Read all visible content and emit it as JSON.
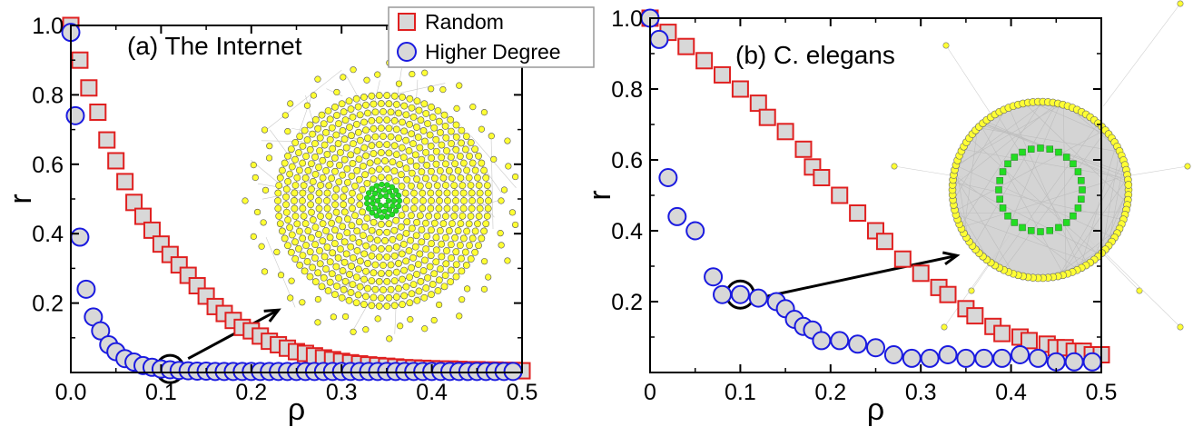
{
  "chart_data": [
    {
      "type": "scatter",
      "title": "(a) The Internet",
      "xlabel": "ρ",
      "ylabel": "r",
      "xlim": [
        0,
        0.5
      ],
      "ylim": [
        0,
        1.0
      ],
      "x_ticks": [
        "0.0",
        "0.1",
        "0.2",
        "0.3",
        "0.4",
        "0.5"
      ],
      "y_ticks": [
        "0.2",
        "0.4",
        "0.6",
        "0.8",
        "1.0"
      ],
      "legend": "top-right",
      "grid": false,
      "series": [
        {
          "name": "Random",
          "marker": "square",
          "color": "#e02020",
          "fill": "#d8d8d8",
          "x": [
            0.0,
            0.01,
            0.02,
            0.03,
            0.04,
            0.05,
            0.06,
            0.07,
            0.08,
            0.09,
            0.1,
            0.11,
            0.12,
            0.13,
            0.14,
            0.15,
            0.16,
            0.17,
            0.18,
            0.19,
            0.2,
            0.21,
            0.22,
            0.23,
            0.24,
            0.25,
            0.26,
            0.27,
            0.28,
            0.29,
            0.3,
            0.31,
            0.32,
            0.33,
            0.34,
            0.35,
            0.36,
            0.37,
            0.38,
            0.39,
            0.4,
            0.41,
            0.42,
            0.43,
            0.44,
            0.45,
            0.46,
            0.47,
            0.48,
            0.49,
            0.5
          ],
          "y": [
            1.0,
            0.9,
            0.82,
            0.75,
            0.67,
            0.61,
            0.55,
            0.49,
            0.45,
            0.41,
            0.37,
            0.34,
            0.31,
            0.28,
            0.25,
            0.22,
            0.19,
            0.17,
            0.15,
            0.13,
            0.12,
            0.105,
            0.09,
            0.08,
            0.07,
            0.06,
            0.055,
            0.048,
            0.042,
            0.037,
            0.032,
            0.028,
            0.025,
            0.022,
            0.02,
            0.018,
            0.016,
            0.014,
            0.013,
            0.012,
            0.011,
            0.01,
            0.01,
            0.009,
            0.008,
            0.008,
            0.007,
            0.007,
            0.006,
            0.006,
            0.005
          ]
        },
        {
          "name": "Higher Degree",
          "marker": "circle",
          "color": "#1a1ae0",
          "fill": "#d8d8d8",
          "x": [
            0.0,
            0.005,
            0.01,
            0.017,
            0.025,
            0.033,
            0.042,
            0.05,
            0.06,
            0.07,
            0.08,
            0.09,
            0.1,
            0.11,
            0.12,
            0.13,
            0.14,
            0.15,
            0.16,
            0.17,
            0.18,
            0.19,
            0.2,
            0.21,
            0.22,
            0.23,
            0.24,
            0.25,
            0.26,
            0.27,
            0.28,
            0.29,
            0.3,
            0.31,
            0.32,
            0.33,
            0.34,
            0.35,
            0.36,
            0.37,
            0.38,
            0.39,
            0.4,
            0.41,
            0.42,
            0.43,
            0.44,
            0.45,
            0.46,
            0.47,
            0.48,
            0.49
          ],
          "y": [
            0.98,
            0.74,
            0.39,
            0.24,
            0.16,
            0.12,
            0.08,
            0.06,
            0.04,
            0.03,
            0.02,
            0.015,
            0.01,
            0.008,
            0.006,
            0.005,
            0.004,
            0.004,
            0.003,
            0.003,
            0.003,
            0.003,
            0.003,
            0.003,
            0.003,
            0.003,
            0.003,
            0.003,
            0.003,
            0.003,
            0.003,
            0.003,
            0.003,
            0.003,
            0.003,
            0.003,
            0.003,
            0.003,
            0.003,
            0.003,
            0.003,
            0.003,
            0.003,
            0.003,
            0.003,
            0.003,
            0.003,
            0.003,
            0.003,
            0.003,
            0.003,
            0.003
          ]
        }
      ],
      "annotations": [
        {
          "type": "highlight-circle",
          "x": 0.11,
          "y": 0.01
        },
        {
          "type": "arrow",
          "from": [
            0.13,
            0.04
          ],
          "to": [
            0.23,
            0.18
          ]
        }
      ],
      "inset": {
        "type": "network",
        "layout": "concentric-rings",
        "node_colors": [
          "#ffff33",
          "#22dd22"
        ]
      }
    },
    {
      "type": "scatter",
      "title": "(b) C. elegans",
      "xlabel": "ρ",
      "ylabel": "r",
      "xlim": [
        0,
        0.5
      ],
      "ylim": [
        0,
        1.0
      ],
      "x_ticks": [
        "0",
        "0.1",
        "0.2",
        "0.3",
        "0.4",
        "0.5"
      ],
      "y_ticks": [
        "0.2",
        "0.4",
        "0.6",
        "0.8",
        "1.0"
      ],
      "grid": false,
      "series": [
        {
          "name": "Random",
          "marker": "square",
          "color": "#e02020",
          "fill": "#d8d8d8",
          "x": [
            0.0,
            0.02,
            0.04,
            0.06,
            0.08,
            0.1,
            0.12,
            0.13,
            0.15,
            0.17,
            0.18,
            0.19,
            0.21,
            0.23,
            0.25,
            0.26,
            0.28,
            0.3,
            0.32,
            0.33,
            0.35,
            0.36,
            0.38,
            0.39,
            0.41,
            0.42,
            0.44,
            0.45,
            0.46,
            0.47,
            0.48,
            0.49,
            0.5
          ],
          "y": [
            1.0,
            0.96,
            0.92,
            0.88,
            0.84,
            0.8,
            0.76,
            0.72,
            0.68,
            0.63,
            0.58,
            0.55,
            0.5,
            0.45,
            0.4,
            0.37,
            0.32,
            0.28,
            0.24,
            0.22,
            0.18,
            0.16,
            0.13,
            0.11,
            0.1,
            0.09,
            0.08,
            0.07,
            0.07,
            0.06,
            0.06,
            0.05,
            0.05
          ]
        },
        {
          "name": "Higher Degree",
          "marker": "circle",
          "color": "#1a1ae0",
          "fill": "#d8d8d8",
          "x": [
            0.0,
            0.01,
            0.02,
            0.03,
            0.05,
            0.07,
            0.08,
            0.1,
            0.12,
            0.14,
            0.15,
            0.16,
            0.17,
            0.18,
            0.19,
            0.21,
            0.23,
            0.25,
            0.27,
            0.29,
            0.31,
            0.33,
            0.35,
            0.37,
            0.39,
            0.41,
            0.43,
            0.45,
            0.47,
            0.49
          ],
          "y": [
            1.0,
            0.94,
            0.55,
            0.44,
            0.4,
            0.27,
            0.22,
            0.22,
            0.21,
            0.2,
            0.18,
            0.15,
            0.13,
            0.12,
            0.09,
            0.09,
            0.08,
            0.07,
            0.05,
            0.04,
            0.04,
            0.05,
            0.04,
            0.04,
            0.04,
            0.05,
            0.04,
            0.03,
            0.03,
            0.03
          ]
        }
      ],
      "annotations": [
        {
          "type": "highlight-circle",
          "x": 0.1,
          "y": 0.22
        },
        {
          "type": "arrow",
          "from": [
            0.12,
            0.21
          ],
          "to": [
            0.34,
            0.33
          ]
        }
      ],
      "inset": {
        "type": "network",
        "layout": "ring-within-ring",
        "node_colors": [
          "#ffff33",
          "#22dd22"
        ]
      }
    }
  ],
  "legend": {
    "random_label": "Random",
    "higher_degree_label": "Higher Degree"
  },
  "colors": {
    "random_edge": "#e02020",
    "degree_edge": "#1a1ae0",
    "marker_fill": "#d8d8d8",
    "inset_outer": "#ffff33",
    "inset_core": "#22dd22",
    "inset_edge": "#c8c8c8"
  }
}
